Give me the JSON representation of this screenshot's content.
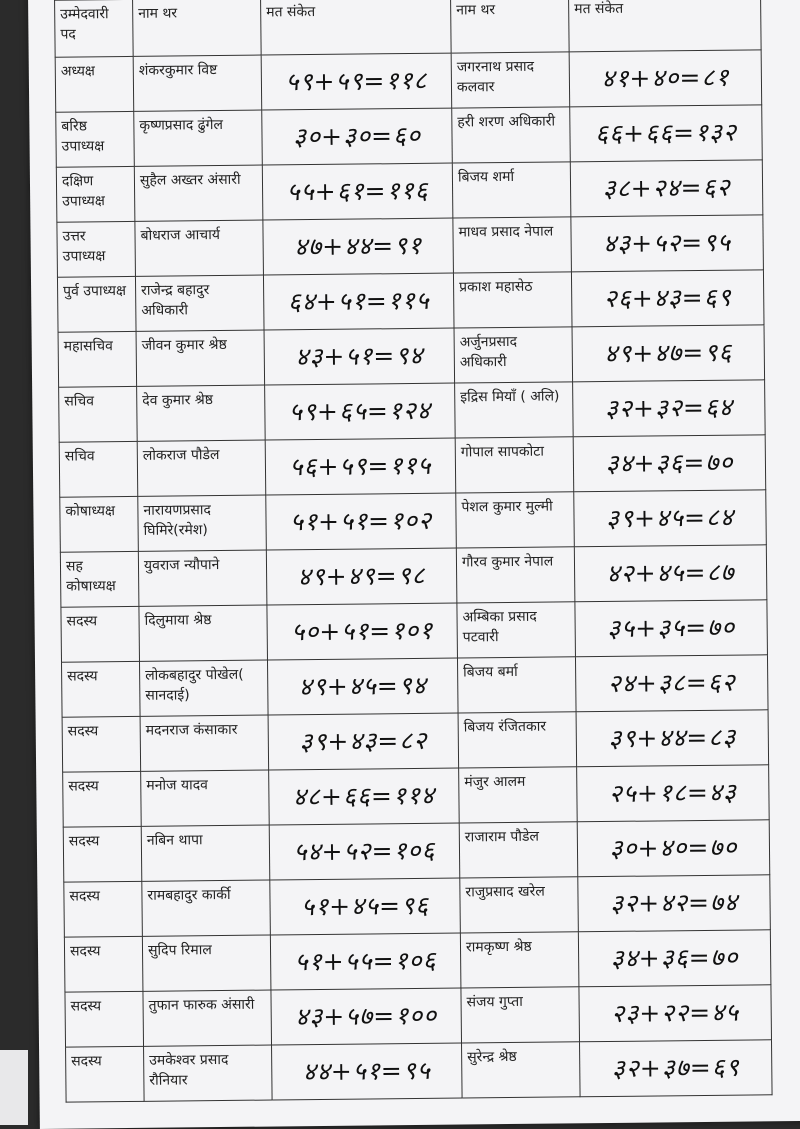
{
  "headers": [
    "उम्मेदवारी पद",
    "नाम थर",
    "मत संकेत",
    "नाम थर",
    "मत संकेत"
  ],
  "rows": [
    {
      "post": "अध्यक्ष",
      "name1": "शंकरकुमार विष्ट",
      "votes1": "५९+५९=११८",
      "name2": "जगरनाथ प्रसाद कलवार",
      "votes2": "४१+४०=८१"
    },
    {
      "post": "बरिष्ठ उपाध्यक्ष",
      "name1": "कृष्णप्रसाद ढुंगेल",
      "votes1": "३०+३०=६०",
      "name2": "हरी शरण अधिकारी",
      "votes2": "६६+६६=१३२"
    },
    {
      "post": "दक्षिण उपाध्यक्ष",
      "name1": "सुहैल अख्तर अंसारी",
      "votes1": "५५+६१=११६",
      "name2": "बिजय शर्मा",
      "votes2": "३८+२४=६२"
    },
    {
      "post": "उत्तर उपाध्यक्ष",
      "name1": "बोधराज आचार्य",
      "votes1": "४७+४४=९१",
      "name2": "माधव प्रसाद नेपाल",
      "votes2": "४३+५२=९५"
    },
    {
      "post": "पुर्व उपाध्यक्ष",
      "name1": "राजेन्द्र बहादुर अधिकारी",
      "votes1": "६४+५१=११५",
      "name2": "प्रकाश महासेठ",
      "votes2": "२६+४३=६९"
    },
    {
      "post": "महासचिव",
      "name1": "जीवन कुमार श्रेष्ठ",
      "votes1": "४३+५१=९४",
      "name2": "अर्जुनप्रसाद अधिकारी",
      "votes2": "४९+४७=९६"
    },
    {
      "post": "सचिव",
      "name1": "देव कुमार श्रेष्ठ",
      "votes1": "५९+६५=१२४",
      "name2": "इद्रिस मियाँ ( अलि)",
      "votes2": "३२+३२=६४"
    },
    {
      "post": "सचिव",
      "name1": "लोकराज पौडेल",
      "votes1": "५६+५९=११५",
      "name2": "गोपाल सापकोटा",
      "votes2": "३४+३६=७०"
    },
    {
      "post": "कोषाध्यक्ष",
      "name1": "नारायणप्रसाद घिमिरे(रमेश)",
      "votes1": "५१+५१=१०२",
      "name2": "पेशल कुमार मुल्मी",
      "votes2": "३९+४५=८४"
    },
    {
      "post": "सह कोषाध्यक्ष",
      "name1": "युवराज न्यौपाने",
      "votes1": "४९+४९=९८",
      "name2": "गौरव कुमार नेपाल",
      "votes2": "४२+४५=८७"
    },
    {
      "post": "सदस्य",
      "name1": "दिलुमाया श्रेष्ठ",
      "votes1": "५०+५१=१०१",
      "name2": "अम्बिका प्रसाद पटवारी",
      "votes2": "३५+३५=७०"
    },
    {
      "post": "सदस्य",
      "name1": "लोकबहादुर पोखेल( सानदाई)",
      "votes1": "४९+४५=९४",
      "name2": "बिजय बर्मा",
      "votes2": "२४+३८=६२"
    },
    {
      "post": "सदस्य",
      "name1": "मदनराज कंसाकार",
      "votes1": "३९+४३=८२",
      "name2": "बिजय रंजितकार",
      "votes2": "३९+४४=८३"
    },
    {
      "post": "सदस्य",
      "name1": "मनोज यादव",
      "votes1": "४८+६६=११४",
      "name2": "मंजुर आलम",
      "votes2": "२५+१८=४३"
    },
    {
      "post": "सदस्य",
      "name1": "नबिन थापा",
      "votes1": "५४+५२=१०६",
      "name2": "राजाराम पौडेल",
      "votes2": "३०+४०=७०"
    },
    {
      "post": "सदस्य",
      "name1": "रामबहादुर कार्की",
      "votes1": "५१+४५=९६",
      "name2": "राजुप्रसाद खरेल",
      "votes2": "३२+४२=७४"
    },
    {
      "post": "सदस्य",
      "name1": "सुदिप रिमाल",
      "votes1": "५१+५५=१०६",
      "name2": "रामकृष्ण श्रेष्ठ",
      "votes2": "३४+३६=७०"
    },
    {
      "post": "सदस्य",
      "name1": "तुफान फारुक अंसारी",
      "votes1": "४३+५७=१००",
      "name2": "संजय गुप्ता",
      "votes2": "२३+२२=४५"
    },
    {
      "post": "सदस्य",
      "name1": "उमकेश्वर प्रसाद रौनियार",
      "votes1": "४४+५१=९५",
      "name2": "सुरेन्द्र श्रेष्ठ",
      "votes2": "३२+३७=६९"
    }
  ]
}
